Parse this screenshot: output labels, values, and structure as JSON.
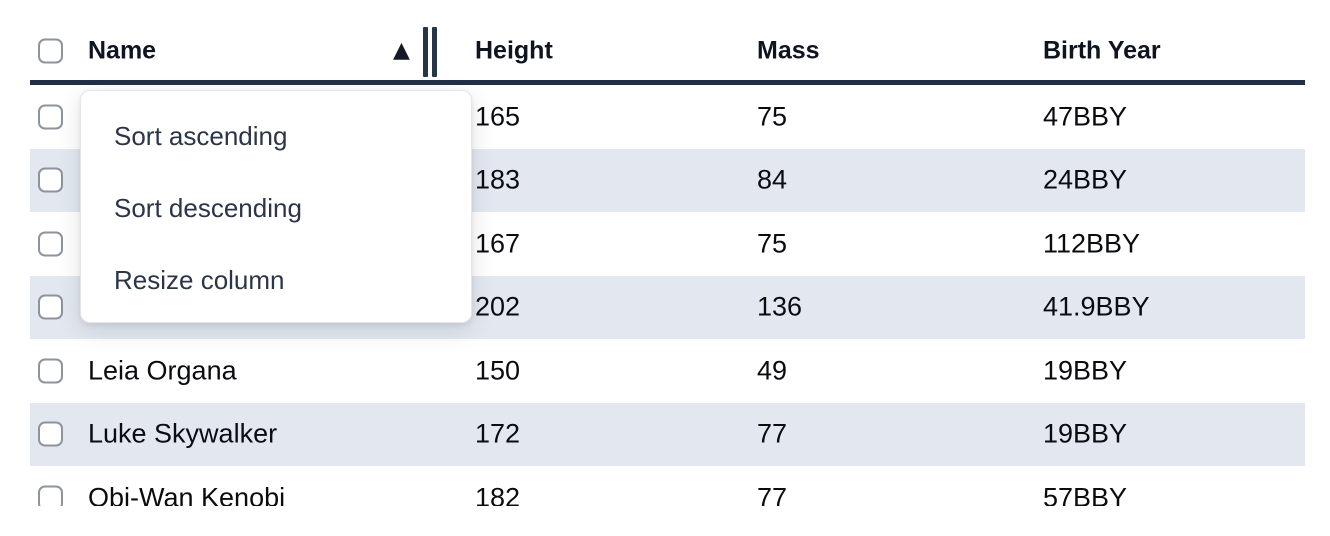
{
  "table": {
    "columns": [
      {
        "label": "Name"
      },
      {
        "label": "Height"
      },
      {
        "label": "Mass"
      },
      {
        "label": "Birth Year"
      }
    ],
    "sort": {
      "column": "Name",
      "direction": "ascending"
    },
    "rows": [
      {
        "name": "",
        "height": "165",
        "mass": "75",
        "birth_year": "47BBY"
      },
      {
        "name": "",
        "height": "183",
        "mass": "84",
        "birth_year": "24BBY"
      },
      {
        "name": "",
        "height": "167",
        "mass": "75",
        "birth_year": "112BBY"
      },
      {
        "name": "",
        "height": "202",
        "mass": "136",
        "birth_year": "41.9BBY"
      },
      {
        "name": "Leia Organa",
        "height": "150",
        "mass": "49",
        "birth_year": "19BBY"
      },
      {
        "name": "Luke Skywalker",
        "height": "172",
        "mass": "77",
        "birth_year": "19BBY"
      },
      {
        "name": "Obi-Wan Kenobi",
        "height": "182",
        "mass": "77",
        "birth_year": "57BBY"
      }
    ],
    "row_checkbox_state": "unchecked",
    "select_all_checkbox_state": "unchecked"
  },
  "context_menu": {
    "items": [
      {
        "label": "Sort ascending"
      },
      {
        "label": "Sort descending"
      },
      {
        "label": "Resize column"
      }
    ]
  },
  "icons": {
    "sort_ascending_indicator": "▲",
    "resize_handle": "double-vertical-bars"
  },
  "colors": {
    "header_border": "#223047",
    "row_stripe": "#e3e8f0",
    "body_text": "#0a0c10",
    "header_text": "#0e1520",
    "menu_text": "#2b3547",
    "checkbox_border": "#8d949e",
    "popup_background": "#ffffff"
  }
}
